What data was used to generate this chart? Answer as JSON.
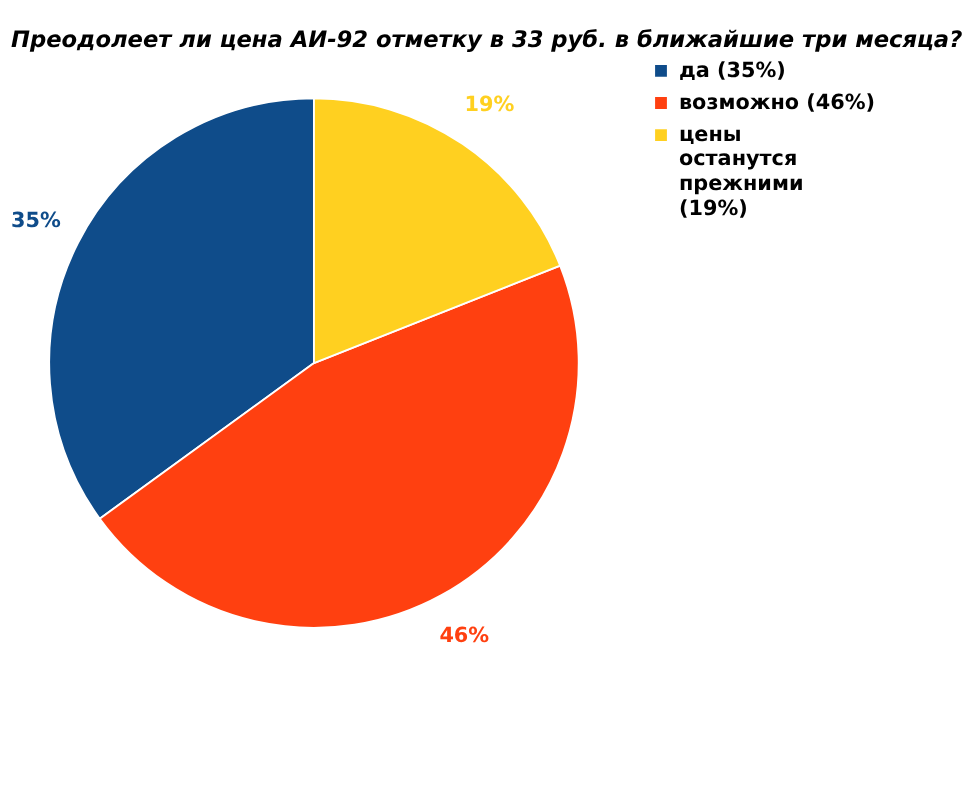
{
  "chart_data": {
    "type": "pie",
    "title": "Преодолеет ли цена АИ-92 отметку в 33 руб. в ближайшие три месяца?",
    "categories": [
      "да (35%)",
      "возможно (46%)",
      "цены останутся прежними (19%)"
    ],
    "values": [
      35,
      46,
      19
    ],
    "colors": [
      "#0f4c8a",
      "#ff4010",
      "#ffd020"
    ],
    "value_labels": [
      "35%",
      "46%",
      "19%"
    ],
    "legend": "right"
  }
}
